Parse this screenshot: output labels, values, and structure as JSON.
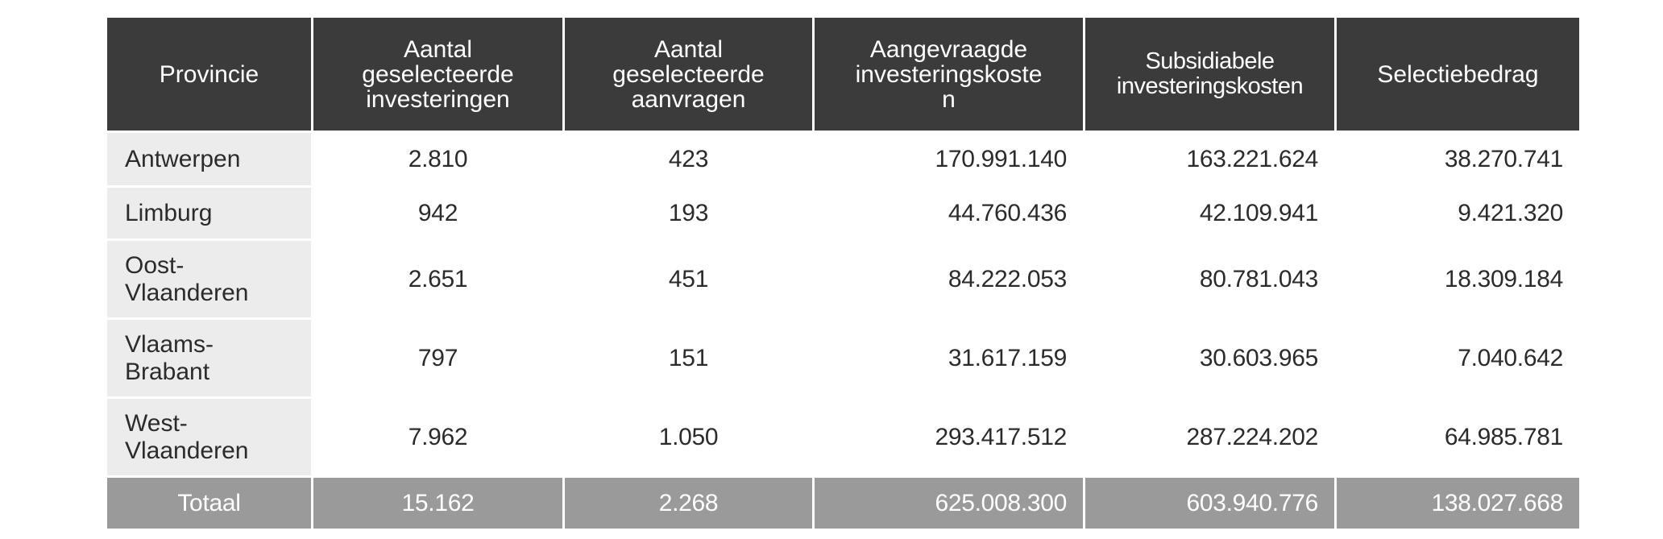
{
  "table": {
    "headers": [
      "Provincie",
      "Aantal geselecteerde investeringen",
      "Aantal geselecteerde aanvragen",
      "Aangevraagde investeringskoste n",
      "Subsidiabele investeringskosten",
      "Selectiebedrag"
    ],
    "header_lines": {
      "h1": [
        "Aantal",
        "geselecteerde",
        "investeringen"
      ],
      "h2": [
        "Aantal",
        "geselecteerde",
        "aanvragen"
      ],
      "h3": [
        "Aangevraagde",
        "investeringskoste",
        "n"
      ],
      "h4": [
        "Subsidiabele",
        "investeringskosten"
      ]
    },
    "rows": [
      {
        "provincie_lines": [
          "Antwerpen"
        ],
        "investeringen": "2.810",
        "aanvragen": "423",
        "aangevraagd": "170.991.140",
        "subsidiabel": "163.221.624",
        "selectiebedrag": "38.270.741"
      },
      {
        "provincie_lines": [
          "Limburg"
        ],
        "investeringen": "942",
        "aanvragen": "193",
        "aangevraagd": "44.760.436",
        "subsidiabel": "42.109.941",
        "selectiebedrag": "9.421.320"
      },
      {
        "provincie_lines": [
          "Oost-",
          "Vlaanderen"
        ],
        "investeringen": "2.651",
        "aanvragen": "451",
        "aangevraagd": "84.222.053",
        "subsidiabel": "80.781.043",
        "selectiebedrag": "18.309.184"
      },
      {
        "provincie_lines": [
          "Vlaams-",
          "Brabant"
        ],
        "investeringen": "797",
        "aanvragen": "151",
        "aangevraagd": "31.617.159",
        "subsidiabel": "30.603.965",
        "selectiebedrag": "7.040.642"
      },
      {
        "provincie_lines": [
          "West-",
          "Vlaanderen"
        ],
        "investeringen": "7.962",
        "aanvragen": "1.050",
        "aangevraagd": "293.417.512",
        "subsidiabel": "287.224.202",
        "selectiebedrag": "64.985.781"
      }
    ],
    "total": {
      "label": "Totaal",
      "investeringen": "15.162",
      "aanvragen": "2.268",
      "aangevraagd": "625.008.300",
      "subsidiabel": "603.940.776",
      "selectiebedrag": "138.027.668"
    }
  },
  "colors": {
    "header_bg": "#3b3b3b",
    "header_text": "#ffffff",
    "first_col_bg": "#ececec",
    "total_bg": "#9a9a9a",
    "total_text": "#ffffff",
    "body_text": "#2b2b2b"
  }
}
